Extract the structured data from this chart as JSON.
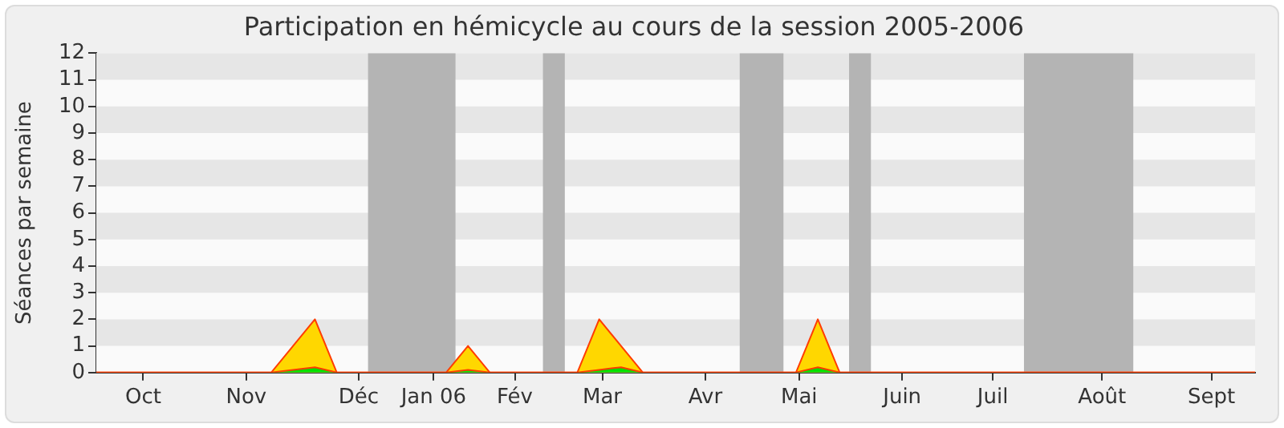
{
  "chart_data": {
    "type": "area",
    "title": "Participation en hémicycle au cours de la session 2005-2006",
    "ylabel": "Séances par semaine",
    "x": [
      "2005-09-22",
      "2005-09-29",
      "2005-10-06",
      "2005-10-13",
      "2005-10-20",
      "2005-10-27",
      "2005-11-03",
      "2005-11-10",
      "2005-11-17",
      "2005-11-24",
      "2005-12-01",
      "2005-12-08",
      "2005-12-15",
      "2005-12-22",
      "2005-12-29",
      "2006-01-05",
      "2006-01-12",
      "2006-01-19",
      "2006-01-26",
      "2006-02-02",
      "2006-02-09",
      "2006-02-16",
      "2006-02-23",
      "2006-03-02",
      "2006-03-09",
      "2006-03-16",
      "2006-03-23",
      "2006-03-30",
      "2006-04-06",
      "2006-04-13",
      "2006-04-20",
      "2006-04-27",
      "2006-05-04",
      "2006-05-11",
      "2006-05-18",
      "2006-05-25",
      "2006-06-01",
      "2006-06-08",
      "2006-06-15",
      "2006-06-22",
      "2006-06-29",
      "2006-07-06",
      "2006-07-13",
      "2006-07-20",
      "2006-07-27",
      "2006-08-03",
      "2006-08-10",
      "2006-08-17",
      "2006-08-24",
      "2006-08-31",
      "2006-09-07",
      "2006-09-14",
      "2006-09-21",
      "2006-09-28"
    ],
    "series": [
      {
        "color": "#ffd700",
        "values": [
          0,
          0,
          0,
          0,
          0,
          0,
          0,
          0,
          0,
          1,
          2,
          0,
          0,
          0,
          0,
          0,
          0,
          1,
          0,
          0,
          0,
          0,
          0,
          2,
          1,
          0,
          0,
          0,
          0,
          0,
          0,
          0,
          0,
          2,
          0,
          0,
          0,
          0,
          0,
          0,
          0,
          0,
          0,
          0,
          0,
          0,
          0,
          0,
          0,
          0,
          0,
          0,
          0,
          0
        ]
      },
      {
        "color": "#00e000",
        "values": [
          0,
          0,
          0,
          0,
          0,
          0,
          0,
          0,
          0,
          0.1,
          0.2,
          0,
          0,
          0,
          0,
          0,
          0,
          0.1,
          0,
          0,
          0,
          0,
          0,
          0.1,
          0.2,
          0,
          0,
          0,
          0,
          0,
          0,
          0,
          0,
          0.2,
          0,
          0,
          0,
          0,
          0,
          0,
          0,
          0,
          0,
          0,
          0,
          0,
          0,
          0,
          0,
          0,
          0,
          0,
          0,
          0
        ]
      }
    ],
    "xlim": [
      "2005-09-22",
      "2006-09-28"
    ],
    "xticks": [
      {
        "value": "2005-10-07",
        "label": "Oct"
      },
      {
        "value": "2005-11-09",
        "label": "Nov"
      },
      {
        "value": "2005-12-15",
        "label": "Déc"
      },
      {
        "value": "2006-01-08",
        "label": "Jan 06"
      },
      {
        "value": "2006-02-03",
        "label": "Fév"
      },
      {
        "value": "2006-03-03",
        "label": "Mar"
      },
      {
        "value": "2006-04-05",
        "label": "Avr"
      },
      {
        "value": "2006-05-05",
        "label": "Mai"
      },
      {
        "value": "2006-06-07",
        "label": "Juin"
      },
      {
        "value": "2006-07-06",
        "label": "Juil"
      },
      {
        "value": "2006-08-10",
        "label": "Août"
      },
      {
        "value": "2006-09-14",
        "label": "Sept"
      }
    ],
    "ylim": [
      0,
      12
    ],
    "yticks": [
      0,
      1,
      2,
      3,
      4,
      5,
      6,
      7,
      8,
      9,
      10,
      11,
      12
    ],
    "legend": false,
    "bands": [
      {
        "axis": "y",
        "from": 1,
        "to": 2,
        "color": "#e6e6e6"
      },
      {
        "axis": "y",
        "from": 3,
        "to": 4,
        "color": "#e6e6e6"
      },
      {
        "axis": "y",
        "from": 5,
        "to": 6,
        "color": "#e6e6e6"
      },
      {
        "axis": "y",
        "from": 7,
        "to": 8,
        "color": "#e6e6e6"
      },
      {
        "axis": "y",
        "from": 9,
        "to": 10,
        "color": "#e6e6e6"
      },
      {
        "axis": "y",
        "from": 11,
        "to": 12,
        "color": "#e6e6e6"
      },
      {
        "axis": "x",
        "from": "2005-12-18",
        "to": "2006-01-15",
        "color": "#b4b4b4"
      },
      {
        "axis": "x",
        "from": "2006-02-12",
        "to": "2006-02-19",
        "color": "#b4b4b4"
      },
      {
        "axis": "x",
        "from": "2006-04-16",
        "to": "2006-04-30",
        "color": "#b4b4b4"
      },
      {
        "axis": "x",
        "from": "2006-05-21",
        "to": "2006-05-28",
        "color": "#b4b4b4"
      },
      {
        "axis": "x",
        "from": "2006-07-16",
        "to": "2006-08-20",
        "color": "#b4b4b4"
      }
    ]
  }
}
